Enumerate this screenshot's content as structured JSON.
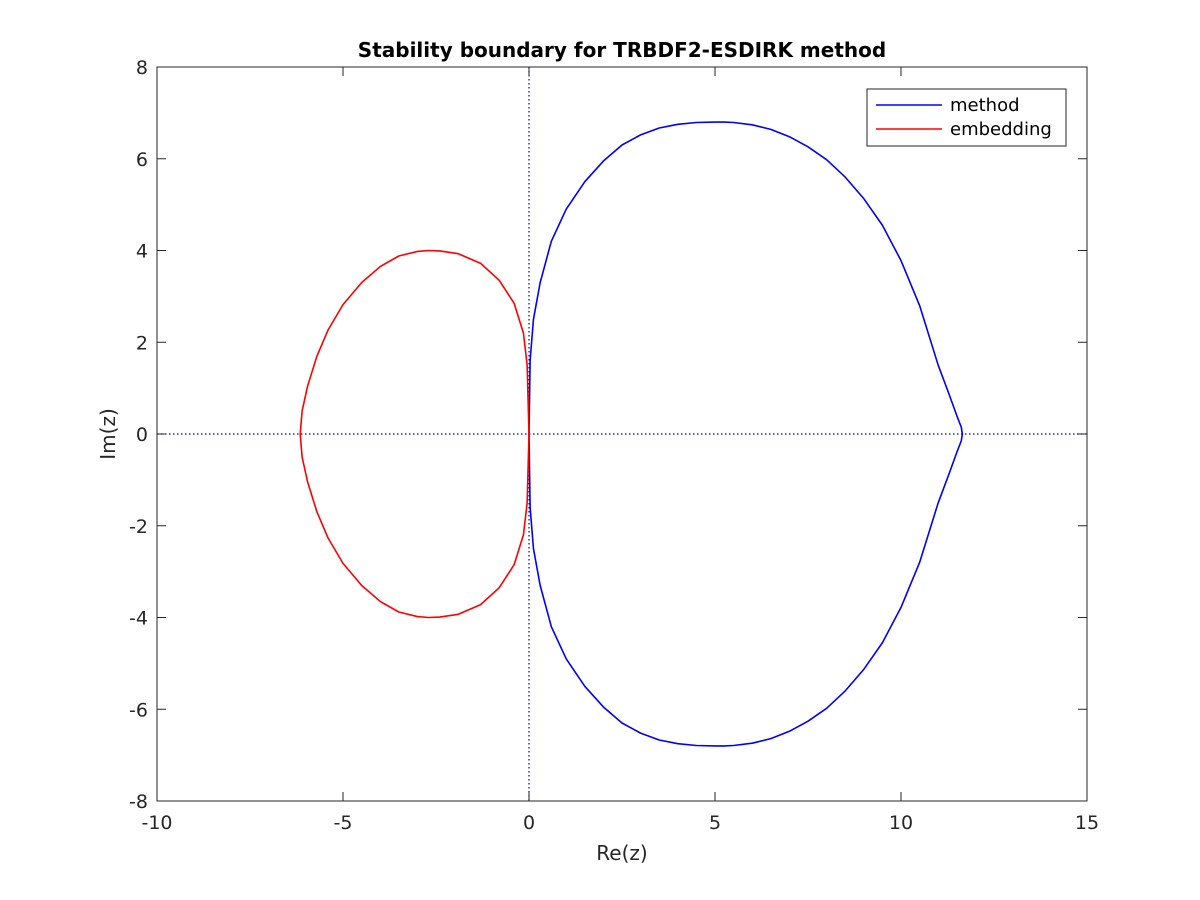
{
  "chart_data": {
    "type": "line",
    "title": "Stability boundary for TRBDF2-ESDIRK method",
    "xlabel": "Re(z)",
    "ylabel": "Im(z)",
    "xlim": [
      -10,
      15
    ],
    "ylim": [
      -8,
      8
    ],
    "xticks": [
      "-10",
      "-5",
      "0",
      "5",
      "10",
      "15"
    ],
    "yticks": [
      "8",
      "6",
      "4",
      "2",
      "0",
      "-2",
      "-4",
      "-6",
      "-8"
    ],
    "grid": false,
    "legend_position": "top-right",
    "reference_lines": [
      {
        "orientation": "vertical",
        "value": 0,
        "style": "dotted",
        "color": "#0000aa"
      },
      {
        "orientation": "horizontal",
        "value": 0,
        "style": "dotted",
        "color": "#0000aa"
      }
    ],
    "series": [
      {
        "name": "method",
        "color": "#0000ff",
        "x": [
          0,
          0.03,
          0.12,
          0.3,
          0.6,
          1.0,
          1.5,
          2.0,
          2.5,
          3.0,
          3.5,
          4.0,
          4.5,
          5.0,
          5.25,
          5.5,
          6.0,
          6.5,
          7.0,
          7.5,
          8.0,
          8.5,
          9.0,
          9.5,
          10.0,
          10.5,
          11.0,
          11.3,
          11.5,
          11.62,
          11.65,
          11.62,
          11.5,
          11.3,
          11.0,
          10.5,
          10.0,
          9.5,
          9.0,
          8.5,
          8.0,
          7.5,
          7.0,
          6.5,
          6.0,
          5.5,
          5.25,
          5.0,
          4.5,
          4.0,
          3.5,
          3.0,
          2.5,
          2.0,
          1.5,
          1.0,
          0.6,
          0.3,
          0.12,
          0.03,
          0
        ],
        "y": [
          0,
          1.6,
          2.5,
          3.3,
          4.2,
          4.9,
          5.5,
          5.95,
          6.3,
          6.52,
          6.67,
          6.75,
          6.79,
          6.8,
          6.8,
          6.79,
          6.74,
          6.64,
          6.48,
          6.26,
          5.98,
          5.6,
          5.13,
          4.55,
          3.78,
          2.8,
          1.5,
          0.85,
          0.4,
          0.15,
          0,
          -0.15,
          -0.4,
          -0.85,
          -1.5,
          -2.8,
          -3.78,
          -4.55,
          -5.13,
          -5.6,
          -5.98,
          -6.26,
          -6.48,
          -6.64,
          -6.74,
          -6.79,
          -6.8,
          -6.8,
          -6.79,
          -6.75,
          -6.67,
          -6.52,
          -6.3,
          -5.95,
          -5.5,
          -4.9,
          -4.2,
          -3.3,
          -2.5,
          -1.6,
          0
        ]
      },
      {
        "name": "embedding",
        "color": "#ff0000",
        "x": [
          0,
          -0.05,
          -0.15,
          -0.4,
          -0.8,
          -1.3,
          -1.9,
          -2.4,
          -2.7,
          -3.0,
          -3.5,
          -4.0,
          -4.5,
          -5.0,
          -5.4,
          -5.7,
          -5.95,
          -6.1,
          -6.15,
          -6.1,
          -5.95,
          -5.7,
          -5.4,
          -5.0,
          -4.5,
          -4.0,
          -3.5,
          -3.0,
          -2.7,
          -2.4,
          -1.9,
          -1.3,
          -0.8,
          -0.4,
          -0.15,
          -0.05,
          0
        ],
        "y": [
          0,
          1.5,
          2.2,
          2.85,
          3.35,
          3.72,
          3.93,
          3.99,
          4.0,
          3.98,
          3.88,
          3.65,
          3.3,
          2.82,
          2.27,
          1.7,
          1.05,
          0.5,
          0,
          -0.5,
          -1.05,
          -1.7,
          -2.27,
          -2.82,
          -3.3,
          -3.65,
          -3.88,
          -3.98,
          -4.0,
          -3.99,
          -3.93,
          -3.72,
          -3.35,
          -2.85,
          -2.2,
          -1.5,
          0
        ]
      }
    ]
  }
}
